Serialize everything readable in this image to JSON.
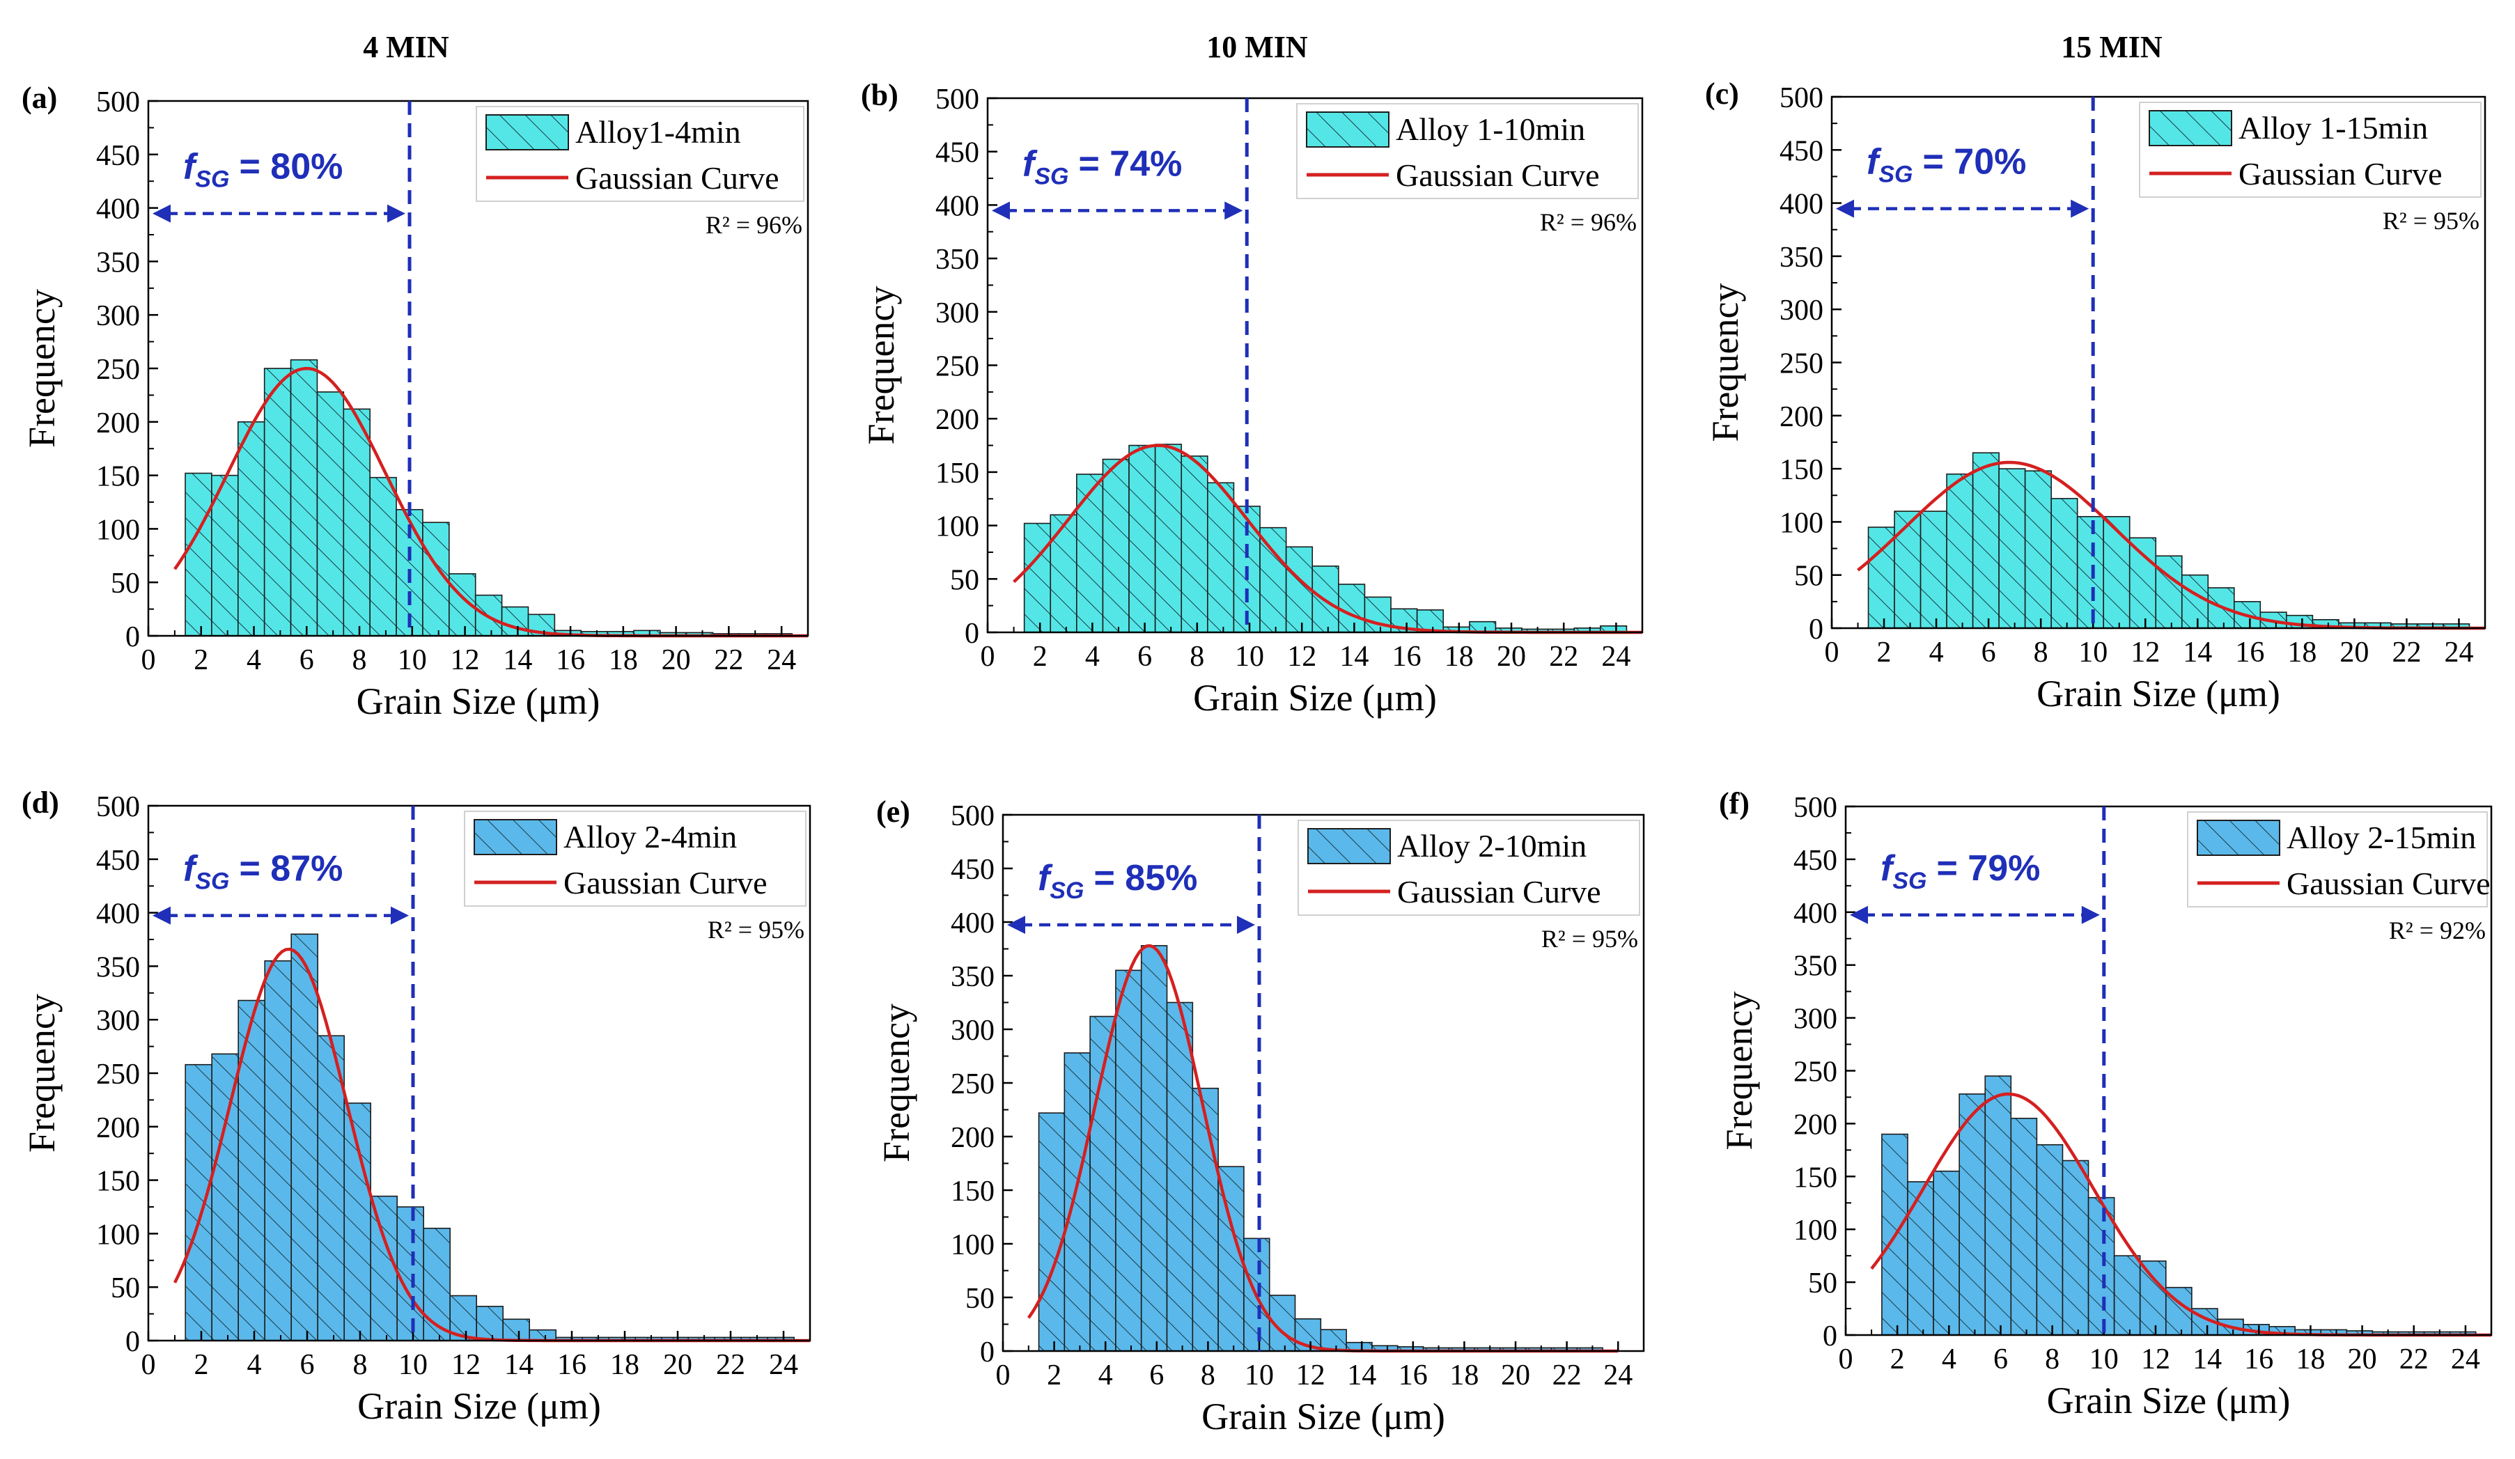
{
  "figure": {
    "columns": [
      "4 MIN",
      "10 MIN",
      "15 MIN"
    ],
    "colors": {
      "row1_bar": "#54E6E6",
      "row2_bar": "#5BB8EA",
      "curve": "#D42020",
      "marker": "#1F2FB8",
      "axis": "#000000"
    }
  },
  "chart_data": [
    {
      "id": "a",
      "panel_label": "(a)",
      "type": "bar",
      "xlabel": "Grain Size (μm)",
      "ylabel": "Frequency",
      "xlim": [
        0,
        25
      ],
      "ylim": [
        0,
        500
      ],
      "xticks": [
        0,
        2,
        4,
        6,
        8,
        10,
        12,
        14,
        16,
        18,
        20,
        22,
        24
      ],
      "yticks": [
        0,
        50,
        100,
        150,
        200,
        250,
        300,
        350,
        400,
        450,
        500
      ],
      "bins": {
        "start": 1.4,
        "width": 1.0
      },
      "series": [
        {
          "name": "Alloy1-4min",
          "values": [
            152,
            150,
            200,
            250,
            258,
            228,
            212,
            148,
            118,
            106,
            58,
            38,
            27,
            20,
            5,
            4,
            4,
            5,
            3,
            3,
            2,
            2,
            2
          ]
        },
        {
          "name": "Gaussian Curve",
          "gauss": {
            "amp": 250,
            "mu": 6.0,
            "sigma": 3.0,
            "xmin": 1.0,
            "xmax": 25
          }
        }
      ],
      "annotations": {
        "f_prefix": "f",
        "f_sub": "SG",
        "f_value": "= 80%",
        "threshold": 9.9,
        "r2": "R² = 96%"
      }
    },
    {
      "id": "b",
      "panel_label": "(b)",
      "type": "bar",
      "xlabel": "Grain Size (μm)",
      "ylabel": "Frequency",
      "xlim": [
        0,
        25
      ],
      "ylim": [
        0,
        500
      ],
      "xticks": [
        0,
        2,
        4,
        6,
        8,
        10,
        12,
        14,
        16,
        18,
        20,
        22,
        24
      ],
      "yticks": [
        0,
        50,
        100,
        150,
        200,
        250,
        300,
        350,
        400,
        450,
        500
      ],
      "bins": {
        "start": 1.4,
        "width": 1.0
      },
      "series": [
        {
          "name": "Alloy 1-10min",
          "values": [
            102,
            110,
            148,
            162,
            175,
            176,
            165,
            140,
            118,
            98,
            80,
            62,
            45,
            33,
            22,
            21,
            5,
            10,
            4,
            3,
            3,
            4,
            6
          ]
        },
        {
          "name": "Gaussian Curve",
          "gauss": {
            "amp": 175,
            "mu": 6.5,
            "sigma": 3.4,
            "xmin": 1.0,
            "xmax": 25
          }
        }
      ],
      "annotations": {
        "f_prefix": "f",
        "f_sub": "SG",
        "f_value": "= 74%",
        "threshold": 9.9,
        "r2": "R² = 96%"
      }
    },
    {
      "id": "c",
      "panel_label": "(c)",
      "type": "bar",
      "xlabel": "Grain Size (μm)",
      "ylabel": "Frequency",
      "xlim": [
        0,
        25
      ],
      "ylim": [
        0,
        500
      ],
      "xticks": [
        0,
        2,
        4,
        6,
        8,
        10,
        12,
        14,
        16,
        18,
        20,
        22,
        24
      ],
      "yticks": [
        0,
        50,
        100,
        150,
        200,
        250,
        300,
        350,
        400,
        450,
        500
      ],
      "bins": {
        "start": 1.4,
        "width": 1.0
      },
      "series": [
        {
          "name": "Alloy 1-15min",
          "values": [
            95,
            110,
            110,
            145,
            165,
            150,
            148,
            122,
            105,
            105,
            85,
            68,
            50,
            38,
            25,
            15,
            12,
            8,
            5,
            5,
            4,
            4,
            4
          ]
        },
        {
          "name": "Gaussian Curve",
          "gauss": {
            "amp": 156,
            "mu": 6.8,
            "sigma": 4.0,
            "xmin": 1.0,
            "xmax": 25
          }
        }
      ],
      "annotations": {
        "f_prefix": "f",
        "f_sub": "SG",
        "f_value": "= 70%",
        "threshold": 10.0,
        "r2": "R² = 95%"
      }
    },
    {
      "id": "d",
      "panel_label": "(d)",
      "type": "bar",
      "xlabel": "Grain Size (μm)",
      "ylabel": "Frequency",
      "xlim": [
        0,
        25
      ],
      "ylim": [
        0,
        500
      ],
      "xticks": [
        0,
        2,
        4,
        6,
        8,
        10,
        12,
        14,
        16,
        18,
        20,
        22,
        24
      ],
      "yticks": [
        0,
        50,
        100,
        150,
        200,
        250,
        300,
        350,
        400,
        450,
        500
      ],
      "bins": {
        "start": 1.4,
        "width": 1.0
      },
      "series": [
        {
          "name": "Alloy 2-4min",
          "values": [
            258,
            268,
            318,
            355,
            380,
            285,
            222,
            135,
            125,
            105,
            42,
            32,
            20,
            10,
            3,
            3,
            3,
            3,
            3,
            3,
            3,
            3,
            3
          ]
        },
        {
          "name": "Gaussian Curve",
          "gauss": {
            "amp": 366,
            "mu": 5.3,
            "sigma": 2.2,
            "xmin": 1.0,
            "xmax": 25
          }
        }
      ],
      "annotations": {
        "f_prefix": "f",
        "f_sub": "SG",
        "f_value": "= 87%",
        "threshold": 10.0,
        "r2": "R² = 95%"
      }
    },
    {
      "id": "e",
      "panel_label": "(e)",
      "type": "bar",
      "xlabel": "Grain Size (μm)",
      "ylabel": "Frequency",
      "xlim": [
        0,
        25
      ],
      "ylim": [
        0,
        500
      ],
      "xticks": [
        0,
        2,
        4,
        6,
        8,
        10,
        12,
        14,
        16,
        18,
        20,
        22,
        24
      ],
      "yticks": [
        0,
        50,
        100,
        150,
        200,
        250,
        300,
        350,
        400,
        450,
        500
      ],
      "bins": {
        "start": 1.4,
        "width": 1.0
      },
      "series": [
        {
          "name": "Alloy 2-10min",
          "values": [
            222,
            278,
            312,
            355,
            378,
            325,
            245,
            172,
            105,
            52,
            30,
            20,
            8,
            5,
            4,
            3,
            3,
            3,
            3,
            3,
            3,
            3
          ]
        },
        {
          "name": "Gaussian Curve",
          "gauss": {
            "amp": 378,
            "mu": 5.7,
            "sigma": 2.1,
            "xmin": 1.0,
            "xmax": 24
          }
        }
      ],
      "annotations": {
        "f_prefix": "f",
        "f_sub": "SG",
        "f_value": "= 85%",
        "threshold": 10.0,
        "r2": "R² = 95%"
      }
    },
    {
      "id": "f",
      "panel_label": "(f)",
      "type": "bar",
      "xlabel": "Grain Size (μm)",
      "ylabel": "Frequency",
      "xlim": [
        0,
        25
      ],
      "ylim": [
        0,
        500
      ],
      "xticks": [
        0,
        2,
        4,
        6,
        8,
        10,
        12,
        14,
        16,
        18,
        20,
        22,
        24
      ],
      "yticks": [
        0,
        50,
        100,
        150,
        200,
        250,
        300,
        350,
        400,
        450,
        500
      ],
      "bins": {
        "start": 1.4,
        "width": 1.0
      },
      "series": [
        {
          "name": "Alloy 2-15min",
          "values": [
            190,
            145,
            155,
            228,
            245,
            205,
            180,
            165,
            130,
            75,
            70,
            45,
            25,
            15,
            10,
            8,
            5,
            5,
            4,
            3,
            3,
            3,
            3
          ]
        },
        {
          "name": "Gaussian Curve",
          "gauss": {
            "amp": 228,
            "mu": 6.3,
            "sigma": 3.3,
            "xmin": 1.0,
            "xmax": 25
          }
        }
      ],
      "annotations": {
        "f_prefix": "f",
        "f_sub": "SG",
        "f_value": "= 79%",
        "threshold": 10.0,
        "r2": "R² = 92%"
      }
    }
  ]
}
